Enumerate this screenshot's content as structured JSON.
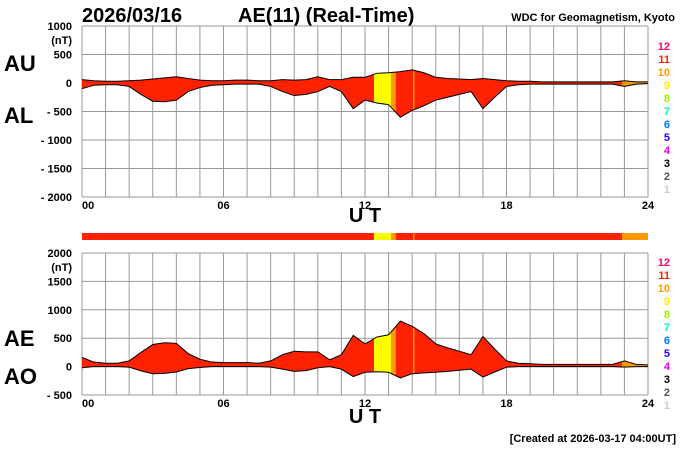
{
  "header": {
    "date": "2026/03/16",
    "title": "AE(11) (Real-Time)",
    "source": "WDC for Geomagnetism, Kyoto",
    "created": "[Created at 2026-03-17 04:00UT]"
  },
  "labels": {
    "au": "AU",
    "al": "AL",
    "ae": "AE",
    "ao": "AO",
    "unit": "(nT)",
    "xlabel": "U T"
  },
  "colors": {
    "11": "#ff2200",
    "10": "#ff9900",
    "9": "#ffff00",
    "outline": "#000000",
    "grid": "#999999"
  },
  "legend": [
    {
      "label": "12",
      "color": "#ff0066"
    },
    {
      "label": "11",
      "color": "#ff2200"
    },
    {
      "label": "10",
      "color": "#ff9900"
    },
    {
      "label": "9",
      "color": "#ffee00"
    },
    {
      "label": "8",
      "color": "#99ee00"
    },
    {
      "label": "7",
      "color": "#00eecc"
    },
    {
      "label": "6",
      "color": "#0077ff"
    },
    {
      "label": "5",
      "color": "#3300ff"
    },
    {
      "label": "4",
      "color": "#ee00ee"
    },
    {
      "label": "3",
      "color": "#000000"
    },
    {
      "label": "2",
      "color": "#555555"
    },
    {
      "label": "1",
      "color": "#cccccc"
    }
  ],
  "chart_data": {
    "type": "area",
    "title": "AE(11) (Real-Time) 2026/03/16",
    "xlabel": "U T",
    "ylabel": "nT",
    "x_ticks": [
      "00",
      "06",
      "12",
      "18",
      "24"
    ],
    "xlim": [
      0,
      24
    ],
    "top_panel": {
      "ylim": [
        -2000,
        1000
      ],
      "y_ticks": [
        "1000",
        "500",
        "0",
        "- 500",
        "- 1000",
        "- 1500",
        "- 2000"
      ]
    },
    "bottom_panel": {
      "ylim": [
        -500,
        2000
      ],
      "y_ticks": [
        "2000",
        "1500",
        "1000",
        "500",
        "0",
        "- 500"
      ]
    },
    "hours": [
      0,
      0.5,
      1,
      1.5,
      2,
      2.5,
      3,
      3.5,
      4,
      4.5,
      5,
      5.5,
      6,
      6.5,
      7,
      7.5,
      8,
      8.5,
      9,
      9.5,
      10,
      10.5,
      11,
      11.5,
      12,
      12.5,
      13,
      13.5,
      14,
      14.5,
      15,
      15.5,
      16,
      16.5,
      17,
      17.5,
      18,
      18.5,
      19,
      19.5,
      20,
      20.5,
      21,
      21.5,
      22,
      22.5,
      23,
      23.5,
      24
    ],
    "series": [
      {
        "name": "AU",
        "values": [
          60,
          40,
          30,
          30,
          40,
          50,
          70,
          90,
          110,
          80,
          50,
          40,
          40,
          50,
          50,
          40,
          40,
          60,
          50,
          60,
          110,
          60,
          60,
          100,
          100,
          170,
          180,
          200,
          230,
          180,
          100,
          80,
          70,
          60,
          80,
          60,
          40,
          30,
          30,
          20,
          20,
          20,
          20,
          20,
          20,
          20,
          40,
          20,
          20
        ]
      },
      {
        "name": "AL",
        "values": [
          -100,
          -40,
          -30,
          -30,
          -60,
          -200,
          -320,
          -330,
          -300,
          -150,
          -80,
          -40,
          -30,
          -20,
          -20,
          -20,
          -60,
          -150,
          -220,
          -200,
          -150,
          -60,
          -150,
          -450,
          -300,
          -350,
          -380,
          -600,
          -480,
          -400,
          -300,
          -250,
          -200,
          -150,
          -450,
          -250,
          -60,
          -30,
          -20,
          -20,
          -20,
          -20,
          -20,
          -20,
          -20,
          -20,
          -60,
          -20,
          -10
        ]
      }
    ],
    "station_count_segments": [
      {
        "from": 0,
        "to": 12.38,
        "stations": 11
      },
      {
        "from": 12.38,
        "to": 13.1,
        "stations": 9
      },
      {
        "from": 13.1,
        "to": 13.3,
        "stations": 10
      },
      {
        "from": 13.3,
        "to": 14.05,
        "stations": 11
      },
      {
        "from": 14.05,
        "to": 14.1,
        "stations": 10
      },
      {
        "from": 14.1,
        "to": 22.9,
        "stations": 11
      },
      {
        "from": 22.9,
        "to": 24,
        "stations": 10
      }
    ]
  }
}
